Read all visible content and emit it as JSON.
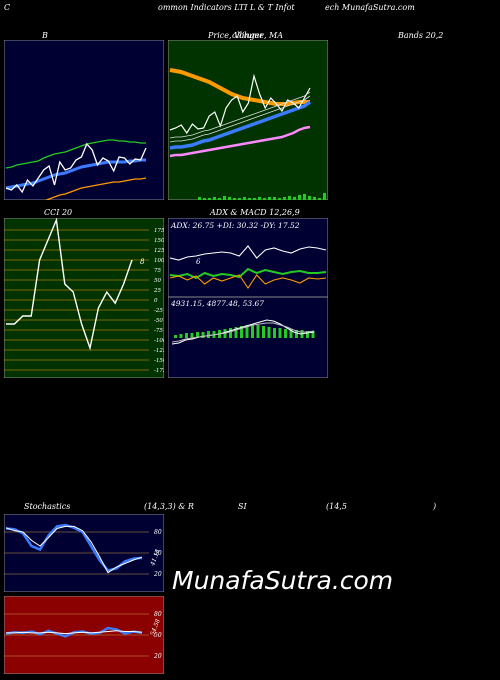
{
  "header": {
    "left": "C",
    "center": "ommon Indicators LTI L & T Infot",
    "right": "ech MunafaSutra.com"
  },
  "titles": {
    "bollinger": "B",
    "price": "Price, Volume, MA",
    "price_overlap": "ollinger",
    "bands": "Bands 20,2",
    "cci": "CCI 20",
    "adx_macd": "ADX  & MACD 12,26,9",
    "stoch": "Stochastics",
    "stoch_params": "(14,3,3) & R",
    "si": "SI",
    "rsi_params": "(14,5",
    "rsi_close": ")"
  },
  "watermark": "MunafaSutra.com",
  "colors": {
    "navy_bg": "#000033",
    "green_bg": "#003300",
    "red_bg": "#8b0000",
    "blue_line": "#3a7bff",
    "green_line": "#22cc22",
    "orange_line": "#ff9900",
    "volume_green": "#22cc22"
  },
  "chart_data": [
    {
      "panel": "bollinger",
      "type": "line",
      "series": [
        {
          "name": "upper",
          "color": "#22cc22",
          "values": [
            128,
            127,
            125,
            124,
            123,
            122,
            121,
            118,
            116,
            114,
            113,
            112,
            110,
            108,
            106,
            104,
            103,
            102,
            101,
            100,
            100,
            101,
            101,
            102,
            102,
            103,
            103
          ]
        },
        {
          "name": "middle",
          "color": "#3a7bff",
          "values": [
            148,
            147,
            146,
            145,
            144,
            143,
            141,
            139,
            137,
            135,
            134,
            133,
            131,
            129,
            127,
            126,
            125,
            124,
            123,
            122,
            122,
            122,
            122,
            121,
            121,
            120,
            120
          ]
        },
        {
          "name": "lower",
          "color": "#ff9900",
          "values": [
            171,
            170,
            169,
            168,
            167,
            165,
            163,
            161,
            159,
            157,
            155,
            154,
            152,
            150,
            148,
            147,
            146,
            145,
            144,
            143,
            142,
            142,
            141,
            140,
            139,
            139,
            138
          ]
        },
        {
          "name": "price",
          "color": "#ffffff",
          "values": [
            148,
            150,
            145,
            152,
            140,
            146,
            138,
            130,
            126,
            145,
            122,
            130,
            128,
            120,
            117,
            104,
            110,
            125,
            118,
            121,
            131,
            117,
            118,
            124,
            119,
            120,
            108
          ]
        }
      ]
    },
    {
      "panel": "price_volume_ma",
      "type": "line",
      "series": [
        {
          "name": "ma-orange",
          "color": "#ff9900",
          "values": [
            70,
            71,
            72,
            74,
            76,
            78,
            80,
            82,
            85,
            88,
            91,
            94,
            96,
            98,
            99,
            100,
            101,
            102,
            103,
            104,
            104,
            104,
            103,
            102,
            102,
            102
          ]
        },
        {
          "name": "ma-blue",
          "color": "#3a7bff",
          "values": [
            148,
            147,
            147,
            146,
            145,
            143,
            141,
            140,
            138,
            136,
            134,
            132,
            130,
            128,
            126,
            124,
            122,
            120,
            118,
            116,
            114,
            112,
            110,
            108,
            106,
            102
          ]
        },
        {
          "name": "ma-pink",
          "color": "#ff88ff",
          "values": [
            156,
            155,
            155,
            154,
            153,
            152,
            151,
            150,
            149,
            148,
            147,
            146,
            145,
            144,
            143,
            142,
            141,
            140,
            139,
            138,
            137,
            135,
            133,
            130,
            128,
            127
          ]
        },
        {
          "name": "price",
          "color": "#ffffff",
          "values": [
            130,
            128,
            125,
            133,
            124,
            129,
            128,
            116,
            112,
            126,
            108,
            100,
            96,
            112,
            103,
            76,
            94,
            108,
            98,
            104,
            111,
            100,
            103,
            108,
            98,
            88
          ]
        }
      ],
      "volume": [
        3,
        2,
        2,
        3,
        2,
        4,
        3,
        2,
        2,
        3,
        2,
        2,
        3,
        2,
        3,
        3,
        2,
        3,
        4,
        3,
        5,
        6,
        4,
        3,
        2,
        7
      ]
    },
    {
      "panel": "cci",
      "type": "line",
      "ticks": [
        "175",
        "150",
        "125",
        "100",
        "75",
        "50",
        "25",
        "0",
        "-25",
        "-50",
        "-75",
        "-100",
        "-125",
        "-150",
        "-175"
      ],
      "last_label": "8",
      "values": [
        -60,
        -60,
        -40,
        -40,
        100,
        150,
        200,
        40,
        20,
        -60,
        -120,
        -20,
        20,
        -8,
        40,
        100
      ]
    },
    {
      "panel": "adx",
      "type": "line",
      "label": "ADX: 26.75  +DI: 30.32  -DY: 17.52",
      "annotation": "6",
      "series": [
        {
          "name": "adx",
          "color": "#ffffff",
          "values": [
            40,
            42,
            39,
            38,
            36,
            35,
            34,
            35,
            38,
            28,
            40,
            32,
            30,
            33,
            35,
            31,
            29,
            30,
            32
          ]
        },
        {
          "name": "+di",
          "color": "#22cc22",
          "values": [
            57,
            58,
            56,
            60,
            55,
            58,
            56,
            57,
            59,
            51,
            55,
            52,
            54,
            56,
            54,
            53,
            55,
            55,
            54
          ]
        },
        {
          "name": "-di",
          "color": "#ff9900",
          "values": [
            60,
            58,
            62,
            58,
            66,
            60,
            63,
            60,
            57,
            70,
            57,
            66,
            62,
            60,
            62,
            65,
            60,
            61,
            60
          ]
        }
      ]
    },
    {
      "panel": "macd",
      "type": "bar",
      "label": "4931.15,   4877.48,   53.67",
      "histogram": [
        3,
        4,
        5,
        5,
        6,
        6,
        7,
        7,
        8,
        9,
        10,
        11,
        12,
        13,
        14,
        13,
        12,
        11,
        10,
        10,
        9,
        9,
        8,
        8,
        7,
        7
      ]
    },
    {
      "panel": "stochastics",
      "type": "line",
      "ticks": [
        "80",
        "50",
        "20"
      ],
      "last_label": "41.14",
      "series": [
        {
          "name": "%K",
          "color": "#3a7bff",
          "values": [
            85,
            84,
            78,
            60,
            55,
            75,
            88,
            90,
            86,
            80,
            60,
            40,
            25,
            28,
            38,
            42,
            43
          ]
        },
        {
          "name": "%D",
          "color": "#ffffff",
          "values": [
            86,
            82,
            80,
            68,
            60,
            72,
            85,
            88,
            88,
            82,
            66,
            45,
            22,
            30,
            35,
            40,
            44
          ]
        }
      ]
    },
    {
      "panel": "rsi",
      "type": "line",
      "ticks": [
        "80",
        "50",
        "20"
      ],
      "last_label": "54.58",
      "series": [
        {
          "name": "rsi",
          "color": "#3a7bff",
          "values": [
            52,
            54,
            53,
            55,
            51,
            56,
            52,
            48,
            54,
            55,
            52,
            53,
            60,
            58,
            52,
            55,
            53
          ]
        },
        {
          "name": "rsi-avg",
          "color": "#ffffff",
          "values": [
            53,
            53,
            54,
            53,
            53,
            54,
            53,
            52,
            53,
            54,
            53,
            54,
            55,
            56,
            55,
            55,
            54
          ]
        }
      ]
    }
  ]
}
